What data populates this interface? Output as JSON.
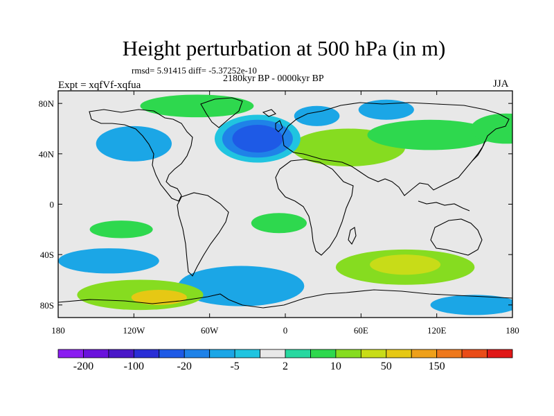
{
  "title": "Height perturbation at 500 hPa (in m)",
  "stats_text": "rmsd= 5.91415 diff= -5.37252e-10",
  "period_text": "2180kyr BP - 0000kyr BP",
  "experiment_text": "Expt = xqfVf-xqfua",
  "season_text": "JJA",
  "chart_data": {
    "type": "heatmap",
    "projection": "cylindrical-equidistant",
    "x_range": [
      -180,
      180
    ],
    "y_range": [
      -90,
      90
    ],
    "x_ticks": [
      {
        "value": -180,
        "label": "180"
      },
      {
        "value": -120,
        "label": "120W"
      },
      {
        "value": -60,
        "label": "60W"
      },
      {
        "value": 0,
        "label": "0"
      },
      {
        "value": 60,
        "label": "60E"
      },
      {
        "value": 120,
        "label": "120E"
      },
      {
        "value": 180,
        "label": "180"
      }
    ],
    "y_ticks": [
      {
        "value": 80,
        "label": "80N"
      },
      {
        "value": 40,
        "label": "40N"
      },
      {
        "value": 0,
        "label": "0"
      },
      {
        "value": -40,
        "label": "40S"
      },
      {
        "value": -80,
        "label": "80S"
      }
    ],
    "colorbar": {
      "colors": [
        "#8a1df0",
        "#6a12dc",
        "#4a18c8",
        "#2a2ed6",
        "#1e5ae6",
        "#1f82e8",
        "#1ba6e6",
        "#20c4e0",
        "#e8e8e8",
        "#28d8a0",
        "#2ed84e",
        "#86dc20",
        "#c8dc18",
        "#e6c814",
        "#eea01a",
        "#ee781c",
        "#ea4c18",
        "#e01818"
      ],
      "labels": [
        {
          "after_box": 1,
          "text": "-200"
        },
        {
          "after_box": 3,
          "text": "-100"
        },
        {
          "after_box": 5,
          "text": "-20"
        },
        {
          "after_box": 7,
          "text": "-5"
        },
        {
          "after_box": 9,
          "text": "2"
        },
        {
          "after_box": 11,
          "text": "10"
        },
        {
          "after_box": 13,
          "text": "50"
        },
        {
          "after_box": 15,
          "text": "150"
        }
      ]
    },
    "regions": [
      {
        "name": "north-atlantic-low",
        "level": 4,
        "lon": -22,
        "lat": 52,
        "rx": 20,
        "ry": 11
      },
      {
        "name": "north-atlantic-low-mid",
        "level": 5,
        "lon": -22,
        "lat": 52,
        "rx": 28,
        "ry": 15
      },
      {
        "name": "north-atlantic-low-outer",
        "level": 7,
        "lon": -22,
        "lat": 52,
        "rx": 34,
        "ry": 19
      },
      {
        "name": "north-pacific-low",
        "level": 6,
        "lon": -120,
        "lat": 48,
        "rx": 30,
        "ry": 14
      },
      {
        "name": "arctic-canada",
        "level": 10,
        "lon": -70,
        "lat": 78,
        "rx": 45,
        "ry": 9
      },
      {
        "name": "eurasia-high",
        "level": 11,
        "lon": 50,
        "lat": 45,
        "rx": 45,
        "ry": 15
      },
      {
        "name": "siberia-high",
        "level": 10,
        "lon": 115,
        "lat": 55,
        "rx": 50,
        "ry": 12
      },
      {
        "name": "north-pacific-high",
        "level": 10,
        "lon": 175,
        "lat": 60,
        "rx": 28,
        "ry": 12
      },
      {
        "name": "europe-low",
        "level": 6,
        "lon": 25,
        "lat": 70,
        "rx": 18,
        "ry": 8
      },
      {
        "name": "east-siberia-low",
        "level": 6,
        "lon": 80,
        "lat": 75,
        "rx": 22,
        "ry": 8
      },
      {
        "name": "southern-indian-high",
        "level": 11,
        "lon": 95,
        "lat": -50,
        "rx": 55,
        "ry": 14
      },
      {
        "name": "southern-indian-high-core",
        "level": 12,
        "lon": 95,
        "lat": -48,
        "rx": 28,
        "ry": 8
      },
      {
        "name": "south-pacific-high",
        "level": 11,
        "lon": -115,
        "lat": -72,
        "rx": 50,
        "ry": 12
      },
      {
        "name": "south-pacific-high-core",
        "level": 13,
        "lon": -100,
        "lat": -74,
        "rx": 22,
        "ry": 6
      },
      {
        "name": "south-atlantic-low",
        "level": 6,
        "lon": -35,
        "lat": -65,
        "rx": 50,
        "ry": 16
      },
      {
        "name": "south-pacific-low",
        "level": 6,
        "lon": -140,
        "lat": -45,
        "rx": 40,
        "ry": 10
      },
      {
        "name": "tropical-pacific-green",
        "level": 10,
        "lon": -130,
        "lat": -20,
        "rx": 25,
        "ry": 7
      },
      {
        "name": "tropical-atlantic-green",
        "level": 10,
        "lon": -5,
        "lat": -15,
        "rx": 22,
        "ry": 8
      },
      {
        "name": "southern-ocean-low",
        "level": 6,
        "lon": 150,
        "lat": -80,
        "rx": 35,
        "ry": 8
      }
    ]
  }
}
